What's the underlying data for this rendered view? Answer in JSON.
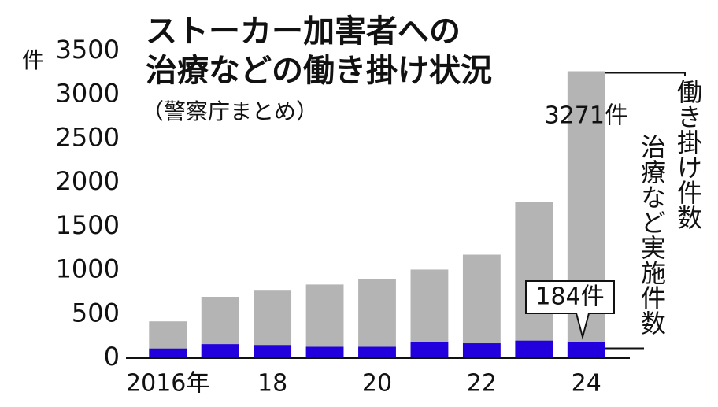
{
  "chart_data": {
    "type": "bar",
    "overlap": true,
    "title": [
      "ストーカー加害者への",
      "治療などの働き掛け状況"
    ],
    "subtitle": "（警察庁まとめ）",
    "y_unit": "件",
    "categories": [
      "2016年",
      null,
      "18",
      null,
      "20",
      null,
      "22",
      null,
      "24"
    ],
    "series": [
      {
        "name": "働き掛け件数",
        "color": "#b4b4b4",
        "values": [
          420,
          700,
          770,
          840,
          900,
          1010,
          1180,
          1780,
          3271
        ],
        "value_labels": [
          null,
          null,
          null,
          null,
          null,
          null,
          null,
          null,
          "3271件"
        ]
      },
      {
        "name": "治療など実施件数",
        "color": "#2200dd",
        "values": [
          110,
          160,
          150,
          130,
          130,
          180,
          170,
          200,
          184
        ],
        "value_labels": [
          null,
          null,
          null,
          null,
          null,
          null,
          null,
          null,
          "184件"
        ]
      }
    ],
    "ylim": [
      0,
      3500
    ],
    "yticks": [
      0,
      500,
      1000,
      1500,
      2000,
      2500,
      3000,
      3500
    ],
    "grid": false
  }
}
